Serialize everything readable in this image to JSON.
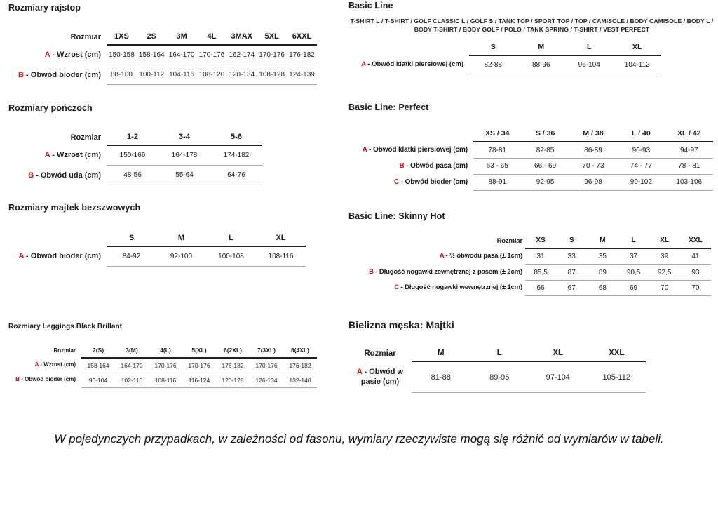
{
  "colors": {
    "accent_red": "#c41414"
  },
  "sections": {
    "rajstop": {
      "title": "Rozmiary rajstop",
      "table": {
        "size_label": "Rozmiar",
        "columns": [
          "1XS",
          "2S",
          "3M",
          "4L",
          "3MAX",
          "5XL",
          "6XXL"
        ],
        "rows": [
          {
            "letter": "A",
            "label": "Wzrost (cm)",
            "values": [
              "150-158",
              "158-164",
              "164-170",
              "170-176",
              "162-174",
              "170-176",
              "176-182"
            ]
          },
          {
            "letter": "B",
            "label": "Obwód bioder (cm)",
            "values": [
              "88-100",
              "100-112",
              "104-116",
              "108-120",
              "120-134",
              "108-128",
              "124-139"
            ]
          }
        ]
      }
    },
    "ponczochy": {
      "title": "Rozmiary pończoch",
      "table": {
        "size_label": "Rozmiar",
        "columns": [
          "1-2",
          "3-4",
          "5-6"
        ],
        "rows": [
          {
            "letter": "A",
            "label": "Wzrost (cm)",
            "values": [
              "150-166",
              "164-178",
              "174-182"
            ]
          },
          {
            "letter": "B",
            "label": "Obwód uda (cm)",
            "values": [
              "48-56",
              "55-64",
              "64-76"
            ]
          }
        ]
      }
    },
    "majtki_bezszwowe": {
      "title": "Rozmiary majtek bezszwowych",
      "table": {
        "size_label": "",
        "columns": [
          "S",
          "M",
          "L",
          "XL"
        ],
        "rows": [
          {
            "letter": "A",
            "label": "Obwód bioder (cm)",
            "values": [
              "84-92",
              "92-100",
              "100-108",
              "108-116"
            ]
          }
        ]
      }
    },
    "leggings": {
      "title": "Rozmiary Leggings Black Brillant",
      "table": {
        "size_label": "Rozmiar",
        "columns": [
          "2(S)",
          "3(M)",
          "4(L)",
          "5(XL)",
          "6(2XL)",
          "7(3XL)",
          "8(4XL)"
        ],
        "rows": [
          {
            "letter": "A",
            "label": "Wzrost (cm)",
            "values": [
              "158-164",
              "164-170",
              "170-176",
              "170-176",
              "176-182",
              "170-176",
              "176-182"
            ]
          },
          {
            "letter": "B",
            "label": "Obwód bioder (cm)",
            "values": [
              "96-104",
              "102-110",
              "108-116",
              "116-124",
              "120-128",
              "126-134",
              "132-140"
            ]
          }
        ]
      }
    },
    "basic_line": {
      "title": "Basic Line",
      "subtitle": "T-SHIRT L / T-SHIRT / GOLF CLASSIC L / GOLF S / TANK TOP / SPORT TOP / TOP / CAMISOLE / BODY CAMISOLE / BODY L / BODY T-SHIRT / BODY GOLF / POLO / TANK SPRING / T-SHIRT / VEST PERFECT",
      "table": {
        "size_label": "",
        "columns": [
          "S",
          "M",
          "L",
          "XL"
        ],
        "rows": [
          {
            "letter": "A",
            "label": "Obwód klatki piersiowej (cm)",
            "values": [
              "82-88",
              "88-96",
              "96-104",
              "104-112"
            ]
          }
        ]
      }
    },
    "basic_line_perfect": {
      "title": "Basic Line: Perfect",
      "table": {
        "size_label": "",
        "columns": [
          "XS / 34",
          "S / 36",
          "M / 38",
          "L / 40",
          "XL / 42"
        ],
        "rows": [
          {
            "letter": "A",
            "label": "Obwód klatki piersiowej (cm)",
            "values": [
              "78-81",
              "82-85",
              "86-89",
              "90-93",
              "94-97"
            ]
          },
          {
            "letter": "B",
            "label": "Obwód pasa (cm)",
            "values": [
              "63 - 65",
              "66 - 69",
              "70 - 73",
              "74 - 77",
              "78 - 81"
            ]
          },
          {
            "letter": "C",
            "label": "Obwód bioder (cm)",
            "values": [
              "88-91",
              "92-95",
              "96-98",
              "99-102",
              "103-106"
            ]
          }
        ]
      }
    },
    "basic_line_skinny_hot": {
      "title": "Basic Line: Skinny Hot",
      "table": {
        "size_label": "Rozmiar",
        "columns": [
          "XS",
          "S",
          "M",
          "L",
          "XL",
          "XXL"
        ],
        "rows": [
          {
            "letter": "A",
            "label": "½ obwodu pasa (± 1cm)",
            "values": [
              "31",
              "33",
              "35",
              "37",
              "39",
              "41"
            ]
          },
          {
            "letter": "B",
            "label": "Długość nogawki zewnętrznej z pasem (± 2cm)",
            "values": [
              "85,5",
              "87",
              "89",
              "90,5",
              "92,5",
              "93"
            ]
          },
          {
            "letter": "C",
            "label": "Długość nogawki wewnętrznej (± 1cm)",
            "values": [
              "66",
              "67",
              "68",
              "69",
              "70",
              "70"
            ]
          }
        ]
      }
    },
    "bielizna_meska": {
      "title": "Bielizna męska: Majtki",
      "table": {
        "size_label": "Rozmiar",
        "columns": [
          "M",
          "L",
          "XL",
          "XXL"
        ],
        "rows": [
          {
            "letter": "A",
            "label": "Obwód w pasie (cm)",
            "values": [
              "81-88",
              "89-96",
              "97-104",
              "105-112"
            ]
          }
        ]
      }
    }
  },
  "footer": {
    "note": "W pojedynczych przypadkach, w zależności od fasonu, wymiary rzeczywiste mogą się różnić od wymiarów w tabeli."
  }
}
